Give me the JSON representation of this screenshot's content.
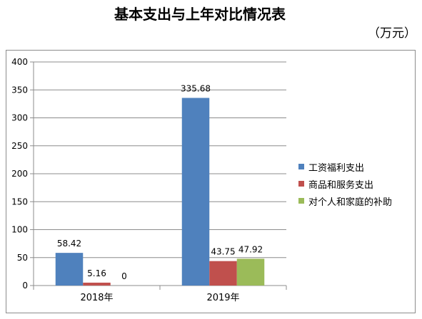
{
  "chart_data": {
    "type": "bar",
    "title": "基本支出与上年对比情况表",
    "unit_label": "（万元）",
    "categories": [
      "2018年",
      "2019年"
    ],
    "series": [
      {
        "name": "工资福利支出",
        "values": [
          58.42,
          335.68
        ],
        "value_labels": [
          "58.42",
          "335.68"
        ],
        "color": "#4f81bd"
      },
      {
        "name": "商品和服务支出",
        "values": [
          5.16,
          43.75
        ],
        "value_labels": [
          "5.16",
          "43.75"
        ],
        "color": "#c0504d"
      },
      {
        "name": "对个人和家庭的补助",
        "values": [
          0,
          47.92
        ],
        "value_labels": [
          "0",
          "47.92"
        ],
        "color": "#9bbb59"
      }
    ],
    "ylim": [
      0,
      400
    ],
    "yticks": [
      "0",
      "50",
      "100",
      "150",
      "200",
      "250",
      "300",
      "350",
      "400"
    ],
    "grid": true,
    "legend_position": "right"
  }
}
